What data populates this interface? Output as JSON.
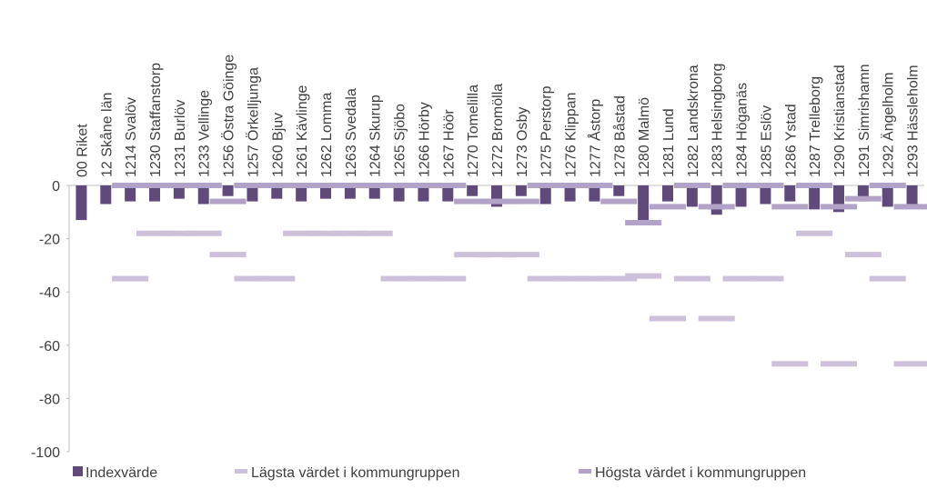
{
  "chart_data": {
    "type": "bar",
    "categories": [
      "00 Riket",
      "12 Skåne län",
      "1214 Svalöv",
      "1230 Staffanstorp",
      "1231 Burlöv",
      "1233 Vellinge",
      "1256 Östra Göinge",
      "1257 Örkelljunga",
      "1260 Bjuv",
      "1261 Kävlinge",
      "1262 Lomma",
      "1263 Svedala",
      "1264 Skurup",
      "1265 Sjöbo",
      "1266 Hörby",
      "1267 Höör",
      "1270 Tomelilla",
      "1272 Bromölla",
      "1273 Osby",
      "1275 Perstorp",
      "1276 Klippan",
      "1277 Åstorp",
      "1278 Båstad",
      "1280 Malmö",
      "1281 Lund",
      "1282 Landskrona",
      "1283 Helsingborg",
      "1284 Höganäs",
      "1285 Eslöv",
      "1286 Ystad",
      "1287 Trelleborg",
      "1290 Kristianstad",
      "1291 Simrishamn",
      "1292 Ängelholm",
      "1293 Hässleholm"
    ],
    "series": [
      {
        "name": "Indexvärde",
        "color": "#604a7b",
        "values": [
          -13,
          -7,
          -6,
          -6,
          -5,
          -7,
          -4,
          -6,
          -5,
          -6,
          -5,
          -5,
          -5,
          -6,
          -6,
          -6,
          -4,
          -8,
          -4,
          -7,
          -6,
          -6,
          -4,
          -13,
          -6,
          -8,
          -11,
          -8,
          -7,
          -6,
          -9,
          -10,
          -6,
          -8,
          -7
        ]
      },
      {
        "name": "Lägsta värdet i kommungruppen",
        "color": "#ccc0da",
        "values": [
          null,
          null,
          -35,
          -18,
          -18,
          -18,
          -26,
          -35,
          -35,
          -18,
          -18,
          -18,
          -18,
          -35,
          -35,
          -35,
          -26,
          -26,
          -26,
          -35,
          -35,
          -35,
          -35,
          -34,
          -50,
          -35,
          -50,
          -35,
          -35,
          -67,
          -18,
          -67,
          -26,
          -35,
          -67
        ]
      },
      {
        "name": "Högsta värdet i kommungruppen",
        "color": "#b3a2c7",
        "values": [
          null,
          null,
          0,
          0,
          0,
          0,
          -6,
          0,
          0,
          0,
          0,
          0,
          0,
          0,
          0,
          0,
          -6,
          -6,
          -6,
          0,
          0,
          0,
          -6,
          -14,
          -8,
          0,
          -8,
          0,
          0,
          -8,
          0,
          -8,
          -5,
          0,
          -8
        ]
      }
    ],
    "ylim": [
      -100,
      0
    ],
    "yticks": [
      0,
      -20,
      -40,
      -60,
      -80,
      -100
    ],
    "legend": "bottom"
  }
}
